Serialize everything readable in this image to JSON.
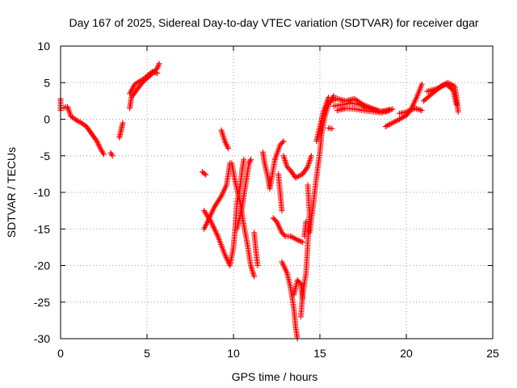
{
  "chart_data": {
    "type": "scatter",
    "title": "Day 167 of 2025, Sidereal Day-to-day VTEC variation (SDTVAR) for receiver dgar",
    "xlabel": "GPS time / hours",
    "ylabel": "SDTVAR / TECUs",
    "xlim": [
      0,
      25
    ],
    "ylim": [
      -30,
      10
    ],
    "xticks": [
      "0",
      "5",
      "10",
      "15",
      "20",
      "25"
    ],
    "yticks": [
      "10",
      "5",
      "0",
      "-5",
      "-10",
      "-15",
      "-20",
      "-25",
      "-30"
    ],
    "grid": true,
    "marker": "plus",
    "color": "#ff0000",
    "series": [
      {
        "segments": [
          [
            [
              0.0,
              2.8
            ],
            [
              0.0,
              1.2
            ]
          ],
          [
            [
              0.2,
              1.6
            ],
            [
              0.4,
              1.7
            ],
            [
              0.6,
              0.4
            ],
            [
              0.9,
              -0.1
            ],
            [
              1.2,
              -0.5
            ],
            [
              1.5,
              -1.0
            ],
            [
              1.8,
              -2.0
            ],
            [
              2.1,
              -3.0
            ],
            [
              2.3,
              -4.0
            ],
            [
              2.5,
              -4.8
            ]
          ],
          [
            [
              2.9,
              -4.6
            ],
            [
              3.0,
              -5.0
            ]
          ],
          [
            [
              3.4,
              -2.5
            ],
            [
              3.5,
              -1.5
            ],
            [
              3.6,
              -0.5
            ]
          ],
          [
            [
              4.0,
              1.5
            ],
            [
              4.1,
              3.0
            ],
            [
              4.4,
              4.0
            ],
            [
              4.8,
              5.2
            ],
            [
              5.2,
              6.0
            ],
            [
              5.6,
              7.0
            ],
            [
              5.7,
              7.6
            ]
          ],
          [
            [
              4.0,
              3.5
            ],
            [
              4.3,
              4.8
            ],
            [
              4.8,
              5.5
            ],
            [
              5.3,
              6.5
            ],
            [
              5.6,
              6.3
            ]
          ],
          [
            [
              8.2,
              -7.2
            ],
            [
              8.4,
              -7.6
            ]
          ],
          [
            [
              8.3,
              -15.0
            ],
            [
              8.6,
              -13.5
            ],
            [
              8.9,
              -12.0
            ],
            [
              9.3,
              -10.5
            ],
            [
              9.6,
              -9.0
            ],
            [
              9.8,
              -6.0
            ]
          ],
          [
            [
              8.3,
              -12.5
            ],
            [
              8.7,
              -14.0
            ],
            [
              9.1,
              -16.0
            ],
            [
              9.5,
              -18.5
            ],
            [
              9.8,
              -20.0
            ],
            [
              10.0,
              -17.5
            ],
            [
              10.1,
              -15.0
            ],
            [
              10.2,
              -11.5
            ],
            [
              10.4,
              -9.0
            ],
            [
              10.5,
              -7.0
            ],
            [
              10.6,
              -5.5
            ]
          ],
          [
            [
              9.3,
              -1.5
            ],
            [
              9.5,
              -3.0
            ],
            [
              9.7,
              -4.0
            ]
          ],
          [
            [
              9.9,
              -6.0
            ],
            [
              10.1,
              -8.5
            ],
            [
              10.4,
              -11.5
            ],
            [
              10.6,
              -14.5
            ],
            [
              10.8,
              -17.0
            ],
            [
              11.0,
              -20.0
            ],
            [
              11.2,
              -21.5
            ]
          ],
          [
            [
              10.2,
              -15.0
            ],
            [
              10.5,
              -12.0
            ],
            [
              10.7,
              -9.0
            ],
            [
              10.9,
              -6.0
            ],
            [
              11.0,
              -5.5
            ]
          ],
          [
            [
              11.2,
              -15.5
            ],
            [
              11.3,
              -18.0
            ],
            [
              11.4,
              -20.0
            ]
          ],
          [
            [
              11.7,
              -4.5
            ],
            [
              11.8,
              -6.0
            ],
            [
              12.0,
              -8.0
            ],
            [
              12.1,
              -9.5
            ],
            [
              12.4,
              -5.5
            ]
          ],
          [
            [
              12.6,
              -7.5
            ],
            [
              12.7,
              -10.0
            ],
            [
              12.8,
              -12.5
            ]
          ],
          [
            [
              12.4,
              -5.5
            ],
            [
              12.7,
              -3.5
            ],
            [
              12.9,
              -3.0
            ]
          ],
          [
            [
              12.9,
              -5.0
            ],
            [
              13.1,
              -6.5
            ],
            [
              13.3,
              -7.0
            ],
            [
              13.6,
              -8.0
            ],
            [
              14.0,
              -7.5
            ],
            [
              14.3,
              -6.5
            ],
            [
              14.5,
              -5.0
            ]
          ],
          [
            [
              12.3,
              -13.5
            ],
            [
              12.5,
              -14.0
            ],
            [
              12.8,
              -15.5
            ],
            [
              13.0,
              -16.0
            ],
            [
              13.3,
              -16.0
            ],
            [
              13.7,
              -16.5
            ],
            [
              14.0,
              -16.8
            ]
          ],
          [
            [
              12.8,
              -19.5
            ],
            [
              13.1,
              -21.0
            ],
            [
              13.3,
              -23.0
            ],
            [
              13.5,
              -26.0
            ],
            [
              13.6,
              -28.5
            ],
            [
              13.7,
              -30.0
            ]
          ],
          [
            [
              13.5,
              -24.0
            ],
            [
              13.7,
              -22.0
            ],
            [
              13.9,
              -22.5
            ],
            [
              14.0,
              -24.5
            ]
          ],
          [
            [
              13.9,
              -27.0
            ],
            [
              14.0,
              -24.0
            ],
            [
              14.2,
              -21.0
            ],
            [
              14.3,
              -17.0
            ],
            [
              14.4,
              -13.0
            ],
            [
              14.3,
              -9.0
            ]
          ],
          [
            [
              14.1,
              -16.0
            ],
            [
              14.2,
              -14.0
            ]
          ],
          [
            [
              14.4,
              -15.5
            ],
            [
              14.6,
              -12.0
            ],
            [
              14.8,
              -8.0
            ],
            [
              15.0,
              -4.5
            ],
            [
              15.1,
              -2.0
            ],
            [
              15.3,
              0.5
            ],
            [
              15.5,
              2.0
            ],
            [
              15.8,
              3.2
            ]
          ],
          [
            [
              14.8,
              -3.0
            ],
            [
              15.0,
              -1.0
            ],
            [
              15.2,
              1.0
            ],
            [
              15.5,
              3.0
            ]
          ],
          [
            [
              15.5,
              -1.2
            ],
            [
              15.7,
              -1.3
            ]
          ],
          [
            [
              15.6,
              2.5
            ],
            [
              16.0,
              2.8
            ],
            [
              16.5,
              2.5
            ],
            [
              17.0,
              2.8
            ],
            [
              17.5,
              2.0
            ],
            [
              18.0,
              1.5
            ],
            [
              18.5,
              1.0
            ],
            [
              19.0,
              1.3
            ]
          ],
          [
            [
              15.8,
              1.8
            ],
            [
              16.3,
              2.0
            ],
            [
              16.8,
              2.2
            ],
            [
              17.3,
              2.0
            ],
            [
              17.8,
              1.5
            ],
            [
              18.3,
              1.2
            ],
            [
              18.8,
              1.0
            ],
            [
              19.2,
              1.4
            ]
          ],
          [
            [
              16.0,
              1.2
            ],
            [
              16.5,
              1.5
            ],
            [
              17.0,
              1.4
            ],
            [
              17.5,
              1.2
            ],
            [
              18.2,
              1.0
            ],
            [
              18.6,
              0.9
            ]
          ],
          [
            [
              18.8,
              -1.0
            ],
            [
              19.2,
              -0.5
            ],
            [
              19.6,
              0.0
            ],
            [
              20.0,
              0.5
            ],
            [
              20.3,
              1.5
            ],
            [
              20.6,
              3.0
            ],
            [
              20.9,
              4.8
            ]
          ],
          [
            [
              19.6,
              0.8
            ],
            [
              20.0,
              1.0
            ],
            [
              20.5,
              1.5
            ],
            [
              20.9,
              1.2
            ]
          ],
          [
            [
              21.0,
              2.5
            ],
            [
              21.5,
              3.5
            ],
            [
              22.0,
              4.5
            ],
            [
              22.4,
              5.0
            ],
            [
              22.8,
              4.5
            ],
            [
              22.9,
              3.0
            ],
            [
              23.0,
              1.0
            ]
          ],
          [
            [
              21.2,
              3.8
            ],
            [
              21.8,
              4.2
            ],
            [
              22.3,
              4.8
            ],
            [
              22.7,
              4.0
            ],
            [
              22.9,
              2.0
            ]
          ]
        ]
      }
    ]
  }
}
